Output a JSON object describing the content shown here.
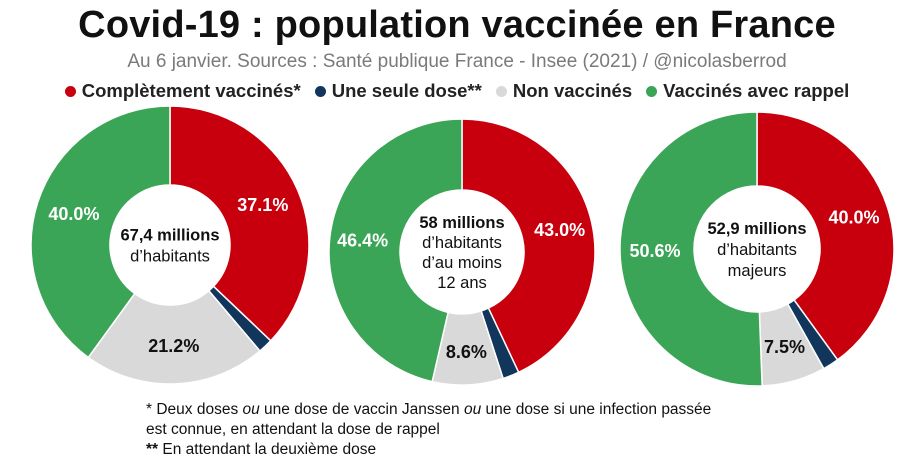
{
  "title": "Covid-19 : population vaccinée en France",
  "subtitle": "Au 6 janvier. Sources : Santé publique France - Insee (2021) / @nicolasberrod",
  "legend": [
    {
      "label": "Complètement vaccinés*",
      "color": "#c8000d"
    },
    {
      "label": "Une seule dose**",
      "color": "#12355b"
    },
    {
      "label": "Non vaccinés",
      "color": "#d9d9d9"
    },
    {
      "label": "Vaccinés avec rappel",
      "color": "#3aa556"
    }
  ],
  "chart_data": [
    {
      "type": "pie",
      "center_lines": [
        {
          "text": "67,4 millions",
          "bold": true
        },
        {
          "text": "d’habitants",
          "bold": false
        }
      ],
      "slices": [
        {
          "name": "Complètement vaccinés*",
          "value": 37.1,
          "label": "37.1%",
          "color": "#c8000d"
        },
        {
          "name": "Une seule dose**",
          "value": 1.7,
          "label": "",
          "color": "#12355b"
        },
        {
          "name": "Non vaccinés",
          "value": 21.2,
          "label": "21.2%",
          "color": "#d9d9d9"
        },
        {
          "name": "Vaccinés avec rappel",
          "value": 40.0,
          "label": "40.0%",
          "color": "#3aa556"
        }
      ]
    },
    {
      "type": "pie",
      "center_lines": [
        {
          "text": "58 millions",
          "bold": true
        },
        {
          "text": "d’habitants",
          "bold": false
        },
        {
          "text": "d’au moins",
          "bold": false
        },
        {
          "text": "12 ans",
          "bold": false
        }
      ],
      "slices": [
        {
          "name": "Complètement vaccinés*",
          "value": 43.0,
          "label": "43.0%",
          "color": "#c8000d"
        },
        {
          "name": "Une seule dose**",
          "value": 2.0,
          "label": "",
          "color": "#12355b"
        },
        {
          "name": "Non vaccinés",
          "value": 8.6,
          "label": "8.6%",
          "color": "#d9d9d9"
        },
        {
          "name": "Vaccinés avec rappel",
          "value": 46.4,
          "label": "46.4%",
          "color": "#3aa556"
        }
      ]
    },
    {
      "type": "pie",
      "center_lines": [
        {
          "text": "52,9 millions",
          "bold": true
        },
        {
          "text": "d’habitants",
          "bold": false
        },
        {
          "text": "majeurs",
          "bold": false
        }
      ],
      "slices": [
        {
          "name": "Complètement vaccinés*",
          "value": 40.0,
          "label": "40.0%",
          "color": "#c8000d"
        },
        {
          "name": "Une seule dose**",
          "value": 1.9,
          "label": "",
          "color": "#12355b"
        },
        {
          "name": "Non vaccinés",
          "value": 7.5,
          "label": "7.5%",
          "color": "#d9d9d9"
        },
        {
          "name": "Vaccinés avec rappel",
          "value": 50.6,
          "label": "50.6%",
          "color": "#3aa556"
        }
      ]
    }
  ],
  "footnotes": {
    "line1_a": "* Deux doses ",
    "line1_b": "ou",
    "line1_c": " une dose de vaccin Janssen ",
    "line1_d": "ou",
    "line1_e": " une dose si une infection passée",
    "line2": "est connue, en attendant la dose de rappel",
    "line3_a": "**",
    "line3_b": " En attendant la deuxième dose"
  }
}
